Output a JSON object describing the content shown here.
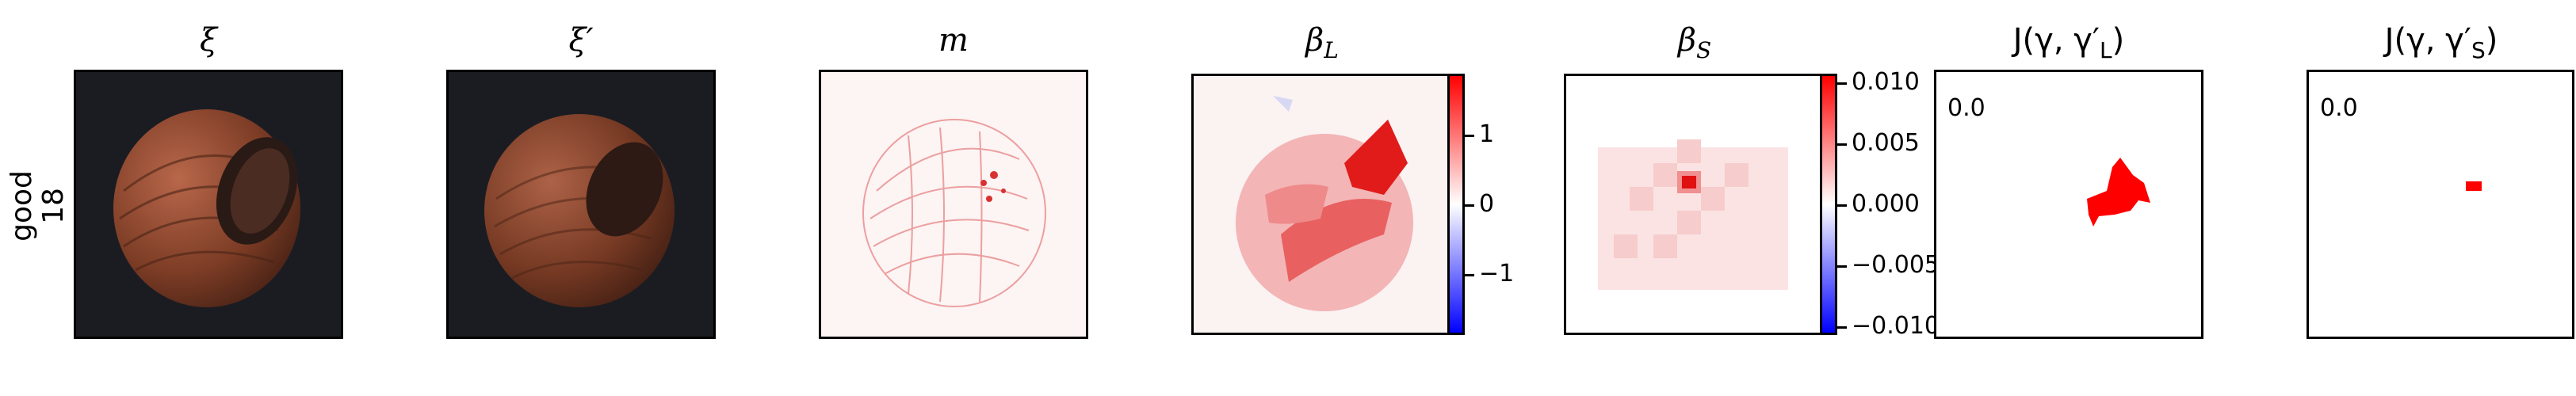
{
  "row": {
    "label_line1": "good",
    "label_line2": "18"
  },
  "titles": {
    "xi": "ξ",
    "xi_prime": "ξ′",
    "m": "m",
    "beta_l": "β",
    "beta_l_sub": "L",
    "beta_s": "β",
    "beta_s_sub": "S",
    "j_l": "J(γ, γ′",
    "j_l_sub": "L",
    "j_s": "J(γ, γ′",
    "j_s_sub": "S"
  },
  "cbar_l": {
    "ticks": [
      "1",
      "0",
      "−1"
    ]
  },
  "cbar_s": {
    "ticks": [
      "0.010",
      "0.005",
      "0.000",
      "−0.005",
      "−0.010"
    ]
  },
  "j_values": {
    "l": "0.0",
    "s": "0.0"
  },
  "colors": {
    "red": "#ff0000",
    "blue": "#0000ff",
    "dark": "#1b1c22",
    "hazel": "#8a4a2f"
  }
}
